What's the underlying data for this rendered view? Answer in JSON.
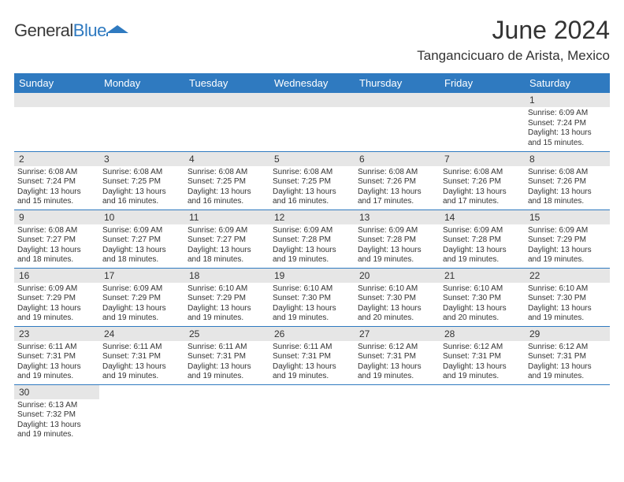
{
  "logo": {
    "word1": "General",
    "word2": "Blue"
  },
  "title": "June 2024",
  "location": "Tangancicuaro de Arista, Mexico",
  "day_headers": [
    "Sunday",
    "Monday",
    "Tuesday",
    "Wednesday",
    "Thursday",
    "Friday",
    "Saturday"
  ],
  "colors": {
    "header_bg": "#2f7ac0",
    "header_text": "#ffffff",
    "gray_row": "#e6e6e6",
    "divider": "#2f7ac0",
    "text": "#333333",
    "logo_blue": "#2f7ac0"
  },
  "fonts": {
    "title_size": 32,
    "location_size": 17,
    "header_size": 13,
    "day_num_size": 12,
    "detail_size": 10
  },
  "weeks": [
    [
      null,
      null,
      null,
      null,
      null,
      null,
      {
        "n": "1",
        "sr": "Sunrise: 6:09 AM",
        "ss": "Sunset: 7:24 PM",
        "dl1": "Daylight: 13 hours",
        "dl2": "and 15 minutes."
      }
    ],
    [
      {
        "n": "2",
        "sr": "Sunrise: 6:08 AM",
        "ss": "Sunset: 7:24 PM",
        "dl1": "Daylight: 13 hours",
        "dl2": "and 15 minutes."
      },
      {
        "n": "3",
        "sr": "Sunrise: 6:08 AM",
        "ss": "Sunset: 7:25 PM",
        "dl1": "Daylight: 13 hours",
        "dl2": "and 16 minutes."
      },
      {
        "n": "4",
        "sr": "Sunrise: 6:08 AM",
        "ss": "Sunset: 7:25 PM",
        "dl1": "Daylight: 13 hours",
        "dl2": "and 16 minutes."
      },
      {
        "n": "5",
        "sr": "Sunrise: 6:08 AM",
        "ss": "Sunset: 7:25 PM",
        "dl1": "Daylight: 13 hours",
        "dl2": "and 16 minutes."
      },
      {
        "n": "6",
        "sr": "Sunrise: 6:08 AM",
        "ss": "Sunset: 7:26 PM",
        "dl1": "Daylight: 13 hours",
        "dl2": "and 17 minutes."
      },
      {
        "n": "7",
        "sr": "Sunrise: 6:08 AM",
        "ss": "Sunset: 7:26 PM",
        "dl1": "Daylight: 13 hours",
        "dl2": "and 17 minutes."
      },
      {
        "n": "8",
        "sr": "Sunrise: 6:08 AM",
        "ss": "Sunset: 7:26 PM",
        "dl1": "Daylight: 13 hours",
        "dl2": "and 18 minutes."
      }
    ],
    [
      {
        "n": "9",
        "sr": "Sunrise: 6:08 AM",
        "ss": "Sunset: 7:27 PM",
        "dl1": "Daylight: 13 hours",
        "dl2": "and 18 minutes."
      },
      {
        "n": "10",
        "sr": "Sunrise: 6:09 AM",
        "ss": "Sunset: 7:27 PM",
        "dl1": "Daylight: 13 hours",
        "dl2": "and 18 minutes."
      },
      {
        "n": "11",
        "sr": "Sunrise: 6:09 AM",
        "ss": "Sunset: 7:27 PM",
        "dl1": "Daylight: 13 hours",
        "dl2": "and 18 minutes."
      },
      {
        "n": "12",
        "sr": "Sunrise: 6:09 AM",
        "ss": "Sunset: 7:28 PM",
        "dl1": "Daylight: 13 hours",
        "dl2": "and 19 minutes."
      },
      {
        "n": "13",
        "sr": "Sunrise: 6:09 AM",
        "ss": "Sunset: 7:28 PM",
        "dl1": "Daylight: 13 hours",
        "dl2": "and 19 minutes."
      },
      {
        "n": "14",
        "sr": "Sunrise: 6:09 AM",
        "ss": "Sunset: 7:28 PM",
        "dl1": "Daylight: 13 hours",
        "dl2": "and 19 minutes."
      },
      {
        "n": "15",
        "sr": "Sunrise: 6:09 AM",
        "ss": "Sunset: 7:29 PM",
        "dl1": "Daylight: 13 hours",
        "dl2": "and 19 minutes."
      }
    ],
    [
      {
        "n": "16",
        "sr": "Sunrise: 6:09 AM",
        "ss": "Sunset: 7:29 PM",
        "dl1": "Daylight: 13 hours",
        "dl2": "and 19 minutes."
      },
      {
        "n": "17",
        "sr": "Sunrise: 6:09 AM",
        "ss": "Sunset: 7:29 PM",
        "dl1": "Daylight: 13 hours",
        "dl2": "and 19 minutes."
      },
      {
        "n": "18",
        "sr": "Sunrise: 6:10 AM",
        "ss": "Sunset: 7:29 PM",
        "dl1": "Daylight: 13 hours",
        "dl2": "and 19 minutes."
      },
      {
        "n": "19",
        "sr": "Sunrise: 6:10 AM",
        "ss": "Sunset: 7:30 PM",
        "dl1": "Daylight: 13 hours",
        "dl2": "and 19 minutes."
      },
      {
        "n": "20",
        "sr": "Sunrise: 6:10 AM",
        "ss": "Sunset: 7:30 PM",
        "dl1": "Daylight: 13 hours",
        "dl2": "and 20 minutes."
      },
      {
        "n": "21",
        "sr": "Sunrise: 6:10 AM",
        "ss": "Sunset: 7:30 PM",
        "dl1": "Daylight: 13 hours",
        "dl2": "and 20 minutes."
      },
      {
        "n": "22",
        "sr": "Sunrise: 6:10 AM",
        "ss": "Sunset: 7:30 PM",
        "dl1": "Daylight: 13 hours",
        "dl2": "and 19 minutes."
      }
    ],
    [
      {
        "n": "23",
        "sr": "Sunrise: 6:11 AM",
        "ss": "Sunset: 7:31 PM",
        "dl1": "Daylight: 13 hours",
        "dl2": "and 19 minutes."
      },
      {
        "n": "24",
        "sr": "Sunrise: 6:11 AM",
        "ss": "Sunset: 7:31 PM",
        "dl1": "Daylight: 13 hours",
        "dl2": "and 19 minutes."
      },
      {
        "n": "25",
        "sr": "Sunrise: 6:11 AM",
        "ss": "Sunset: 7:31 PM",
        "dl1": "Daylight: 13 hours",
        "dl2": "and 19 minutes."
      },
      {
        "n": "26",
        "sr": "Sunrise: 6:11 AM",
        "ss": "Sunset: 7:31 PM",
        "dl1": "Daylight: 13 hours",
        "dl2": "and 19 minutes."
      },
      {
        "n": "27",
        "sr": "Sunrise: 6:12 AM",
        "ss": "Sunset: 7:31 PM",
        "dl1": "Daylight: 13 hours",
        "dl2": "and 19 minutes."
      },
      {
        "n": "28",
        "sr": "Sunrise: 6:12 AM",
        "ss": "Sunset: 7:31 PM",
        "dl1": "Daylight: 13 hours",
        "dl2": "and 19 minutes."
      },
      {
        "n": "29",
        "sr": "Sunrise: 6:12 AM",
        "ss": "Sunset: 7:31 PM",
        "dl1": "Daylight: 13 hours",
        "dl2": "and 19 minutes."
      }
    ],
    [
      {
        "n": "30",
        "sr": "Sunrise: 6:13 AM",
        "ss": "Sunset: 7:32 PM",
        "dl1": "Daylight: 13 hours",
        "dl2": "and 19 minutes."
      },
      null,
      null,
      null,
      null,
      null,
      null
    ]
  ]
}
